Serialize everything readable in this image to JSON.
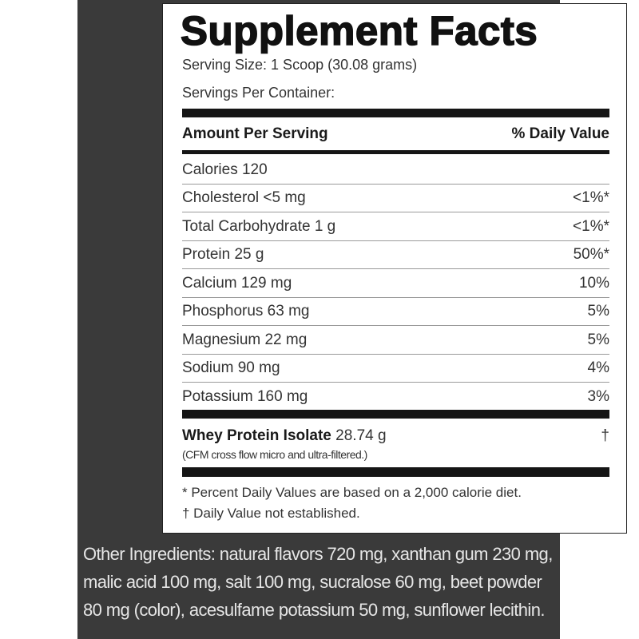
{
  "title": "Supplement Facts",
  "serving_size": "Serving Size: 1 Scoop (30.08 grams)",
  "servings_per_container": "Servings Per Container:",
  "header": {
    "amount": "Amount Per Serving",
    "dv": "% Daily Value"
  },
  "rows": [
    {
      "name": "Calories 120",
      "dv": ""
    },
    {
      "name": "Cholesterol  <5 mg",
      "dv": "<1%*"
    },
    {
      "name": "Total Carbohydrate  1 g",
      "dv": "<1%*"
    },
    {
      "name": "Protein  25 g",
      "dv": "50%*"
    },
    {
      "name": "Calcium  129 mg",
      "dv": "10%"
    },
    {
      "name": "Phosphorus  63 mg",
      "dv": "5%"
    },
    {
      "name": "Magnesium  22 mg",
      "dv": "5%"
    },
    {
      "name": "Sodium  90 mg",
      "dv": "4%"
    },
    {
      "name": "Potassium  160 mg",
      "dv": "3%"
    }
  ],
  "whey": {
    "name": "Whey Protein Isolate",
    "amount": "28.74 g",
    "dv": "†",
    "note": "(CFM cross flow micro and ultra-filtered.)"
  },
  "footnotes": [
    "* Percent Daily Values are based on a 2,000 calorie diet.",
    "† Daily Value not established."
  ],
  "other_ingredients": "Other Ingredients: natural flavors 720 mg, xanthan gum 230 mg, malic acid 100 mg, salt 100 mg, sucralose 60 mg, beet powder 80 mg (color), acesulfame potassium 50 mg, sunflower lecithin."
}
